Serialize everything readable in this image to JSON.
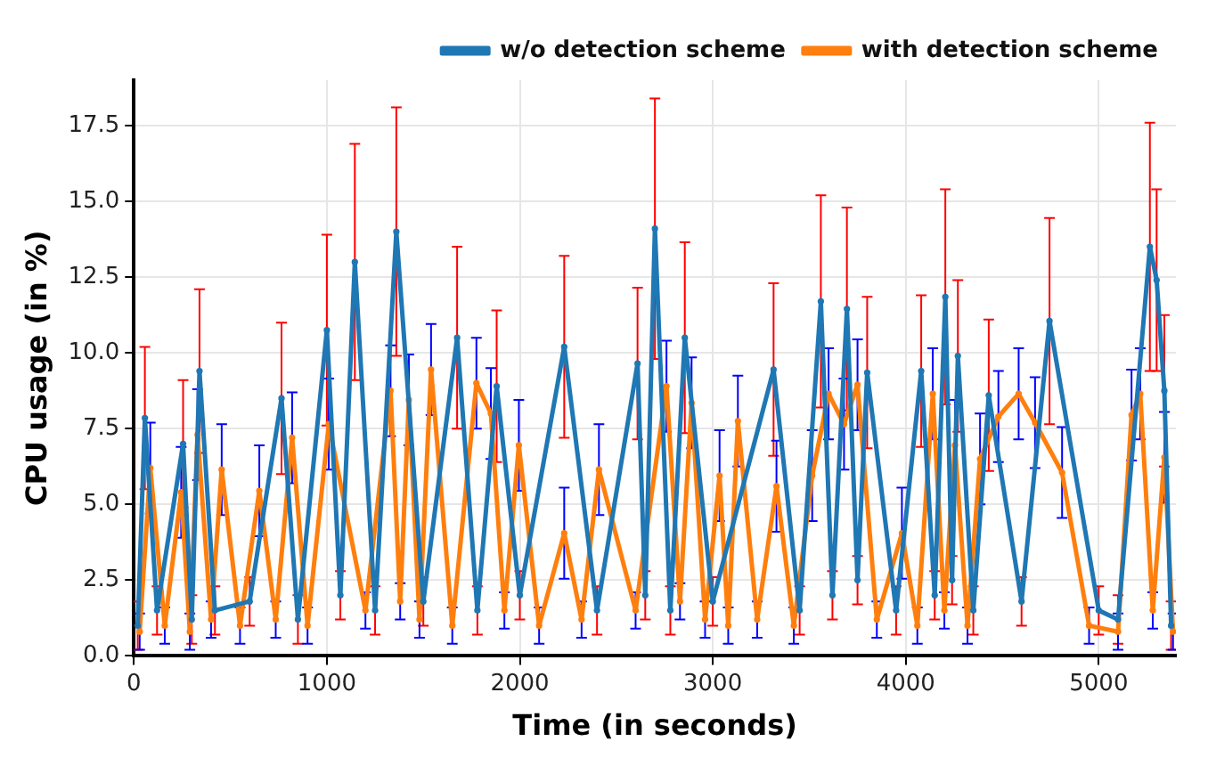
{
  "chart_data": {
    "type": "line",
    "xlabel": "Time (in seconds)",
    "ylabel": "CPU usage (in %)",
    "xlim": [
      0,
      5400
    ],
    "xticks": [
      0,
      1000,
      2000,
      3000,
      4000,
      5000
    ],
    "ylim": [
      0,
      19
    ],
    "yticks": [
      {
        "value": 0,
        "label": "0.0"
      },
      {
        "value": 2.5,
        "label": "2.5"
      },
      {
        "value": 5,
        "label": "5.0"
      },
      {
        "value": 7.5,
        "label": "7.5"
      },
      {
        "value": 10,
        "label": "10.0"
      },
      {
        "value": 12.5,
        "label": "12.5"
      },
      {
        "value": 15,
        "label": "15.0"
      },
      {
        "value": 17.5,
        "label": "17.5"
      }
    ],
    "grid": true,
    "legend": "top right",
    "marker": "circle",
    "line_style": "solid",
    "series": [
      {
        "name": "w/o detection scheme",
        "color": "#1f77b4",
        "x": [
          20,
          57,
          120,
          255,
          300,
          340,
          420,
          600,
          765,
          850,
          1000,
          1070,
          1145,
          1250,
          1360,
          1500,
          1675,
          1780,
          1880,
          2000,
          2230,
          2400,
          2610,
          2650,
          2700,
          2780,
          2855,
          3000,
          3315,
          3450,
          3560,
          3620,
          3695,
          3750,
          3800,
          3950,
          4080,
          4150,
          4205,
          4240,
          4270,
          4350,
          4430,
          4600,
          4745,
          5000,
          5100,
          5265,
          5300,
          5340,
          5375
        ],
        "values": [
          1,
          7.85,
          1.5,
          7.0,
          1.2,
          9.4,
          1.5,
          1.8,
          8.5,
          1.2,
          10.75,
          2,
          13.0,
          1.5,
          14.0,
          1.8,
          10.5,
          1.5,
          8.9,
          2,
          10.2,
          1.5,
          9.65,
          2,
          14.1,
          1.5,
          10.5,
          1.8,
          9.45,
          1.5,
          11.7,
          2,
          11.45,
          2.5,
          9.35,
          1.5,
          9.4,
          2,
          11.85,
          2.5,
          9.9,
          1.5,
          8.6,
          1.8,
          11.05,
          1.5,
          1.2,
          13.5,
          12.4,
          8.75,
          1.0
        ],
        "errors": [
          0.8,
          2.35,
          0.8,
          2.1,
          0.8,
          2.7,
          0.8,
          0.8,
          2.5,
          0.8,
          3.15,
          0.8,
          3.9,
          0.8,
          4.1,
          0.8,
          3.0,
          0.8,
          2.5,
          0.8,
          3.0,
          0.8,
          2.5,
          0.8,
          4.3,
          0.8,
          3.15,
          0.8,
          2.85,
          0.8,
          3.5,
          0.8,
          3.35,
          0.8,
          2.5,
          0.8,
          2.5,
          0.8,
          3.55,
          0.8,
          2.5,
          0.8,
          2.5,
          0.8,
          3.4,
          0.8,
          0.8,
          4.1,
          3.0,
          2.5,
          0.8
        ]
      },
      {
        "name": "with detection scheme",
        "color": "#ff7f0e",
        "x": [
          30,
          85,
          160,
          245,
          290,
          330,
          400,
          455,
          550,
          650,
          735,
          820,
          900,
          1010,
          1200,
          1330,
          1380,
          1425,
          1480,
          1540,
          1650,
          1775,
          1850,
          1920,
          1995,
          2100,
          2230,
          2320,
          2410,
          2600,
          2760,
          2830,
          2890,
          2960,
          3035,
          3080,
          3130,
          3230,
          3330,
          3420,
          3515,
          3600,
          3680,
          3750,
          3850,
          3980,
          4060,
          4140,
          4200,
          4255,
          4320,
          4385,
          4480,
          4585,
          4670,
          4810,
          4950,
          5100,
          5170,
          5215,
          5280,
          5340,
          5385
        ],
        "values": [
          0.8,
          6.2,
          1.0,
          5.4,
          0.8,
          7.3,
          1.2,
          6.15,
          1.0,
          5.45,
          1.2,
          7.2,
          1.0,
          7.65,
          1.5,
          8.75,
          1.8,
          8.45,
          1.2,
          9.45,
          1.0,
          9.0,
          8.0,
          1.5,
          6.95,
          1.0,
          4.05,
          1.2,
          6.15,
          1.5,
          8.9,
          1.8,
          8.35,
          1.2,
          5.95,
          1.0,
          7.75,
          1.2,
          5.6,
          1.0,
          5.95,
          8.65,
          7.65,
          8.95,
          1.2,
          4.05,
          1.0,
          8.65,
          1.5,
          6.95,
          1.0,
          6.5,
          7.9,
          8.65,
          7.7,
          6.05,
          1.0,
          0.8,
          7.95,
          8.65,
          1.5,
          6.55,
          0.8
        ],
        "errors": [
          0.6,
          1.5,
          0.6,
          1.5,
          0.6,
          1.5,
          0.6,
          1.5,
          0.6,
          1.5,
          0.6,
          1.5,
          0.6,
          1.5,
          0.6,
          1.5,
          0.6,
          1.5,
          0.6,
          1.5,
          0.6,
          1.5,
          1.5,
          0.6,
          1.5,
          0.6,
          1.5,
          0.6,
          1.5,
          0.6,
          1.5,
          0.6,
          1.5,
          0.6,
          1.5,
          0.6,
          1.5,
          0.6,
          1.5,
          0.6,
          1.5,
          1.5,
          1.5,
          1.5,
          0.6,
          1.5,
          0.6,
          1.5,
          0.6,
          1.5,
          0.6,
          1.5,
          1.5,
          1.5,
          1.5,
          1.5,
          0.6,
          0.6,
          1.5,
          1.5,
          0.6,
          1.5,
          0.6
        ]
      }
    ]
  }
}
